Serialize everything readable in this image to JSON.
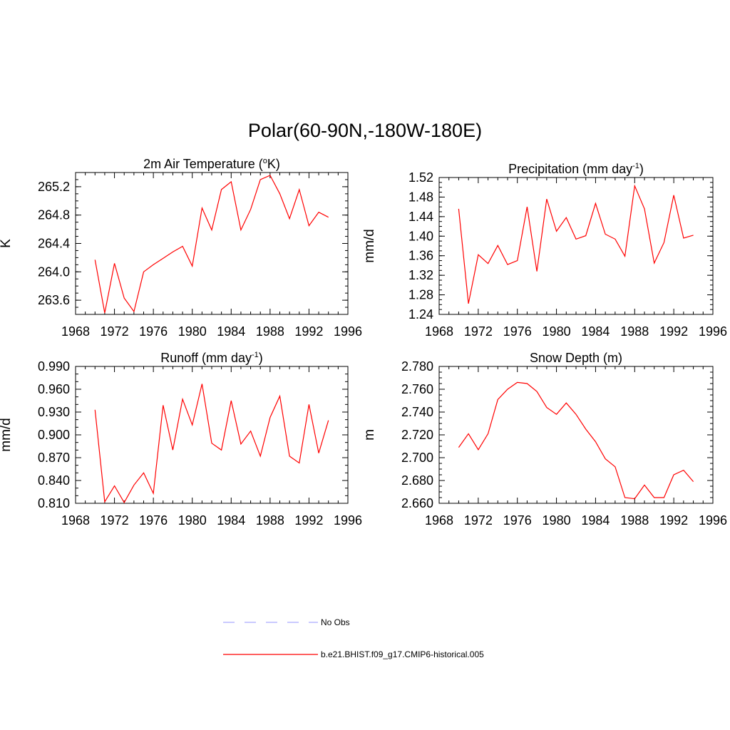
{
  "figure": {
    "title": "Polar(60-90N,-180W-180E)",
    "legend": [
      {
        "label": "No Obs",
        "color": "#aaaaff",
        "dash": true
      },
      {
        "label": "b.e21.BHIST.f09_g17.CMIP6-historical.005",
        "color": "#ff0000",
        "dash": false
      }
    ]
  },
  "chart_data": [
    {
      "type": "line",
      "title": "2m Air Temperature (",
      "title_sup": "o",
      "title_after": "K)",
      "ylabel": "K",
      "xlabel": "",
      "xlim": [
        1968,
        1996
      ],
      "xticks": [
        1968,
        1972,
        1976,
        1980,
        1984,
        1988,
        1992,
        1996
      ],
      "ylim": [
        263.4,
        265.4
      ],
      "yticks": [
        263.6,
        264.0,
        264.4,
        264.8,
        265.2
      ],
      "ytick_labels": [
        "263.6",
        "264.0",
        "264.4",
        "264.8",
        "265.2"
      ],
      "yminor": 0.1,
      "series": [
        {
          "name": "b.e21.BHIST.f09_g17.CMIP6-historical.005",
          "color": "#ff0000",
          "x": [
            1970,
            1971,
            1972,
            1973,
            1974,
            1975,
            1976,
            1977,
            1978,
            1979,
            1980,
            1981,
            1982,
            1983,
            1984,
            1985,
            1986,
            1987,
            1988,
            1989,
            1990,
            1991,
            1992,
            1993,
            1994
          ],
          "values": [
            264.17,
            263.42,
            264.12,
            263.63,
            263.44,
            264.0,
            264.1,
            264.19,
            264.28,
            264.36,
            264.08,
            264.9,
            264.59,
            265.16,
            265.27,
            264.59,
            264.88,
            265.3,
            265.36,
            265.1,
            264.75,
            265.16,
            264.65,
            264.84,
            264.77
          ]
        }
      ]
    },
    {
      "type": "line",
      "title": "Precipitation (mm day",
      "title_sup": "-1",
      "title_after": ")",
      "ylabel": "mm/d",
      "xlabel": "",
      "xlim": [
        1968,
        1996
      ],
      "xticks": [
        1968,
        1972,
        1976,
        1980,
        1984,
        1988,
        1992,
        1996
      ],
      "ylim": [
        1.24,
        1.52
      ],
      "yticks": [
        1.24,
        1.28,
        1.32,
        1.36,
        1.4,
        1.44,
        1.48,
        1.52
      ],
      "ytick_labels": [
        "1.24",
        "1.28",
        "1.32",
        "1.36",
        "1.40",
        "1.44",
        "1.48",
        "1.52"
      ],
      "yminor": 0.01,
      "series": [
        {
          "name": "b.e21.BHIST.f09_g17.CMIP6-historical.005",
          "color": "#ff0000",
          "x": [
            1970,
            1971,
            1972,
            1973,
            1974,
            1975,
            1976,
            1977,
            1978,
            1979,
            1980,
            1981,
            1982,
            1983,
            1984,
            1985,
            1986,
            1987,
            1988,
            1989,
            1990,
            1991,
            1992,
            1993,
            1994
          ],
          "values": [
            1.456,
            1.262,
            1.362,
            1.344,
            1.381,
            1.342,
            1.35,
            1.46,
            1.328,
            1.476,
            1.41,
            1.438,
            1.394,
            1.401,
            1.467,
            1.404,
            1.394,
            1.359,
            1.503,
            1.456,
            1.345,
            1.387,
            1.484,
            1.396,
            1.402
          ]
        }
      ]
    },
    {
      "type": "line",
      "title": "Runoff (mm day",
      "title_sup": "-1",
      "title_after": ")",
      "ylabel": "mm/d",
      "xlabel": "",
      "xlim": [
        1968,
        1996
      ],
      "xticks": [
        1968,
        1972,
        1976,
        1980,
        1984,
        1988,
        1992,
        1996
      ],
      "ylim": [
        0.81,
        0.99
      ],
      "yticks": [
        0.81,
        0.84,
        0.87,
        0.9,
        0.93,
        0.96,
        0.99
      ],
      "ytick_labels": [
        "0.810",
        "0.840",
        "0.870",
        "0.900",
        "0.930",
        "0.960",
        "0.990"
      ],
      "yminor": 0.01,
      "series": [
        {
          "name": "b.e21.BHIST.f09_g17.CMIP6-historical.005",
          "color": "#ff0000",
          "x": [
            1970,
            1971,
            1972,
            1973,
            1974,
            1975,
            1976,
            1977,
            1978,
            1979,
            1980,
            1981,
            1982,
            1983,
            1984,
            1985,
            1986,
            1987,
            1988,
            1989,
            1990,
            1991,
            1992,
            1993,
            1994
          ],
          "values": [
            0.933,
            0.812,
            0.833,
            0.811,
            0.834,
            0.85,
            0.823,
            0.939,
            0.88,
            0.947,
            0.913,
            0.967,
            0.889,
            0.88,
            0.945,
            0.888,
            0.905,
            0.872,
            0.923,
            0.951,
            0.872,
            0.863,
            0.94,
            0.876,
            0.919
          ]
        }
      ]
    },
    {
      "type": "line",
      "title": "Snow Depth (m)",
      "title_sup": "",
      "title_after": "",
      "ylabel": "m",
      "xlabel": "",
      "xlim": [
        1968,
        1996
      ],
      "xticks": [
        1968,
        1972,
        1976,
        1980,
        1984,
        1988,
        1992,
        1996
      ],
      "ylim": [
        2.66,
        2.78
      ],
      "yticks": [
        2.66,
        2.68,
        2.7,
        2.72,
        2.74,
        2.76,
        2.78
      ],
      "ytick_labels": [
        "2.660",
        "2.680",
        "2.700",
        "2.720",
        "2.740",
        "2.760",
        "2.780"
      ],
      "yminor": 0.005,
      "series": [
        {
          "name": "b.e21.BHIST.f09_g17.CMIP6-historical.005",
          "color": "#ff0000",
          "x": [
            1970,
            1971,
            1972,
            1973,
            1974,
            1975,
            1976,
            1977,
            1978,
            1979,
            1980,
            1981,
            1982,
            1983,
            1984,
            1985,
            1986,
            1987,
            1988,
            1989,
            1990,
            1991,
            1992,
            1993,
            1994
          ],
          "values": [
            2.709,
            2.721,
            2.707,
            2.721,
            2.751,
            2.76,
            2.766,
            2.765,
            2.758,
            2.744,
            2.738,
            2.748,
            2.738,
            2.725,
            2.714,
            2.699,
            2.692,
            2.665,
            2.664,
            2.676,
            2.665,
            2.665,
            2.685,
            2.689,
            2.679
          ]
        }
      ]
    }
  ]
}
